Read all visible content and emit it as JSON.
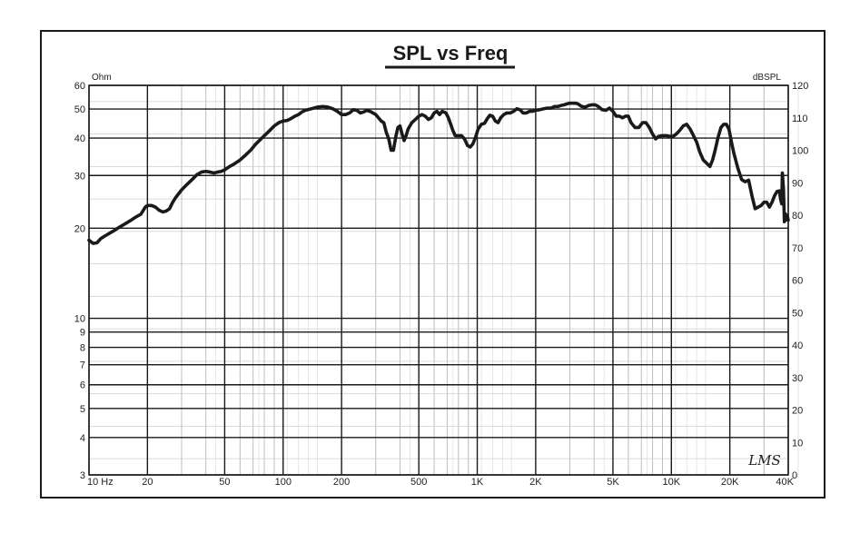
{
  "chart_data": {
    "type": "line",
    "title": "SPL vs Freq",
    "x_scale": "log",
    "xlim": [
      10,
      40000
    ],
    "left_axis": {
      "unit": "Ohm",
      "scale": "log",
      "lim": [
        3,
        60
      ],
      "ticks": [
        {
          "v": 60,
          "label": "60"
        },
        {
          "v": 50,
          "label": "50"
        },
        {
          "v": 40,
          "label": "40"
        },
        {
          "v": 30,
          "label": "30"
        },
        {
          "v": 20,
          "label": "20"
        },
        {
          "v": 10,
          "label": "10"
        },
        {
          "v": 9,
          "label": "9"
        },
        {
          "v": 8,
          "label": "8"
        },
        {
          "v": 7,
          "label": "7"
        },
        {
          "v": 6,
          "label": "6"
        },
        {
          "v": 5,
          "label": "5"
        },
        {
          "v": 4,
          "label": "4"
        },
        {
          "v": 3,
          "label": "3"
        }
      ]
    },
    "right_axis": {
      "unit": "dBSPL",
      "scale": "linear",
      "lim": [
        0,
        120
      ],
      "ticks": [
        {
          "v": 120,
          "label": "120"
        },
        {
          "v": 110,
          "label": "110"
        },
        {
          "v": 100,
          "label": "100"
        },
        {
          "v": 90,
          "label": "90"
        },
        {
          "v": 80,
          "label": "80"
        },
        {
          "v": 70,
          "label": "70"
        },
        {
          "v": 60,
          "label": "60"
        },
        {
          "v": 50,
          "label": "50"
        },
        {
          "v": 40,
          "label": "40"
        },
        {
          "v": 30,
          "label": "30"
        },
        {
          "v": 20,
          "label": "20"
        },
        {
          "v": 10,
          "label": "10"
        },
        {
          "v": 0,
          "label": "0"
        }
      ]
    },
    "x_ticks": [
      {
        "v": 10,
        "label": "10 Hz"
      },
      {
        "v": 20,
        "label": "20"
      },
      {
        "v": 50,
        "label": "50"
      },
      {
        "v": 100,
        "label": "100"
      },
      {
        "v": 200,
        "label": "200"
      },
      {
        "v": 500,
        "label": "500"
      },
      {
        "v": 1000,
        "label": "1K"
      },
      {
        "v": 2000,
        "label": "2K"
      },
      {
        "v": 5000,
        "label": "5K"
      },
      {
        "v": 10000,
        "label": "10K"
      },
      {
        "v": 20000,
        "label": "20K"
      },
      {
        "v": 40000,
        "label": "40K"
      }
    ],
    "grid": true,
    "series": [
      {
        "axis": "right",
        "points": [
          [
            10,
            72.3
          ],
          [
            10.5,
            71.3
          ],
          [
            11,
            71.5
          ],
          [
            11.5,
            72.8
          ],
          [
            12,
            73.5
          ],
          [
            12.8,
            74.5
          ],
          [
            13.5,
            75.3
          ],
          [
            14.5,
            76.5
          ],
          [
            15.5,
            77.5
          ],
          [
            16.5,
            78.5
          ],
          [
            17.5,
            79.5
          ],
          [
            18.5,
            80.3
          ],
          [
            19.5,
            82.5
          ],
          [
            20,
            83
          ],
          [
            21,
            83
          ],
          [
            22,
            82.5
          ],
          [
            23,
            81.5
          ],
          [
            24,
            81
          ],
          [
            25,
            81.3
          ],
          [
            26,
            82
          ],
          [
            27,
            84
          ],
          [
            28,
            85.5
          ],
          [
            30,
            87.8
          ],
          [
            32,
            89.5
          ],
          [
            34,
            91
          ],
          [
            36,
            92.5
          ],
          [
            38,
            93.3
          ],
          [
            40,
            93.5
          ],
          [
            42,
            93.3
          ],
          [
            44,
            93
          ],
          [
            46,
            93.3
          ],
          [
            48,
            93.5
          ],
          [
            50,
            94
          ],
          [
            53,
            95
          ],
          [
            56,
            95.8
          ],
          [
            60,
            97
          ],
          [
            64,
            98.5
          ],
          [
            68,
            100
          ],
          [
            72,
            101.8
          ],
          [
            76,
            103.2
          ],
          [
            80,
            104.5
          ],
          [
            85,
            106
          ],
          [
            90,
            107.5
          ],
          [
            95,
            108.5
          ],
          [
            100,
            109
          ],
          [
            105,
            109.2
          ],
          [
            110,
            109.8
          ],
          [
            115,
            110.5
          ],
          [
            120,
            111
          ],
          [
            125,
            111.8
          ],
          [
            130,
            112.3
          ],
          [
            140,
            112.8
          ],
          [
            150,
            113.3
          ],
          [
            160,
            113.5
          ],
          [
            170,
            113.3
          ],
          [
            180,
            112.8
          ],
          [
            190,
            112
          ],
          [
            200,
            111
          ],
          [
            210,
            111
          ],
          [
            220,
            111.5
          ],
          [
            230,
            112.5
          ],
          [
            240,
            112.3
          ],
          [
            250,
            111.5
          ],
          [
            260,
            111.8
          ],
          [
            270,
            112.3
          ],
          [
            280,
            112
          ],
          [
            290,
            111.5
          ],
          [
            300,
            111
          ],
          [
            310,
            110
          ],
          [
            320,
            109
          ],
          [
            330,
            108.5
          ],
          [
            340,
            105.5
          ],
          [
            350,
            103.5
          ],
          [
            360,
            100
          ],
          [
            370,
            100
          ],
          [
            380,
            104
          ],
          [
            390,
            107
          ],
          [
            400,
            107.5
          ],
          [
            410,
            105
          ],
          [
            420,
            103
          ],
          [
            430,
            104.5
          ],
          [
            440,
            106.5
          ],
          [
            460,
            108.5
          ],
          [
            480,
            109.5
          ],
          [
            500,
            110.5
          ],
          [
            520,
            111
          ],
          [
            540,
            110.5
          ],
          [
            560,
            109.5
          ],
          [
            580,
            110
          ],
          [
            600,
            111.5
          ],
          [
            620,
            112
          ],
          [
            640,
            111
          ],
          [
            660,
            112
          ],
          [
            690,
            111.5
          ],
          [
            710,
            110
          ],
          [
            730,
            108
          ],
          [
            750,
            106
          ],
          [
            770,
            104.5
          ],
          [
            800,
            104.5
          ],
          [
            830,
            104.5
          ],
          [
            860,
            103.5
          ],
          [
            890,
            101.5
          ],
          [
            920,
            101
          ],
          [
            950,
            102
          ],
          [
            980,
            104
          ],
          [
            1010,
            106.5
          ],
          [
            1050,
            108
          ],
          [
            1090,
            108.3
          ],
          [
            1120,
            109.5
          ],
          [
            1160,
            110.8
          ],
          [
            1200,
            110.5
          ],
          [
            1240,
            109
          ],
          [
            1280,
            108.5
          ],
          [
            1320,
            110
          ],
          [
            1370,
            111
          ],
          [
            1420,
            111.5
          ],
          [
            1480,
            111.5
          ],
          [
            1540,
            112
          ],
          [
            1600,
            112.8
          ],
          [
            1660,
            112.5
          ],
          [
            1720,
            111.5
          ],
          [
            1790,
            111.5
          ],
          [
            1860,
            112
          ],
          [
            1930,
            112
          ],
          [
            2000,
            112.3
          ],
          [
            2100,
            112.5
          ],
          [
            2200,
            112.8
          ],
          [
            2300,
            113
          ],
          [
            2400,
            113
          ],
          [
            2500,
            113.5
          ],
          [
            2600,
            113.5
          ],
          [
            2700,
            113.8
          ],
          [
            2800,
            114
          ],
          [
            2900,
            114.3
          ],
          [
            3000,
            114.5
          ],
          [
            3100,
            114.5
          ],
          [
            3200,
            114.5
          ],
          [
            3300,
            114.3
          ],
          [
            3450,
            113.5
          ],
          [
            3600,
            113.3
          ],
          [
            3750,
            113.8
          ],
          [
            3900,
            114
          ],
          [
            4050,
            114
          ],
          [
            4200,
            113.5
          ],
          [
            4400,
            112.5
          ],
          [
            4600,
            112.3
          ],
          [
            4800,
            113
          ],
          [
            5000,
            112
          ],
          [
            5200,
            110.5
          ],
          [
            5400,
            110.5
          ],
          [
            5600,
            110
          ],
          [
            5800,
            110.5
          ],
          [
            6000,
            110.5
          ],
          [
            6200,
            108.5
          ],
          [
            6500,
            107
          ],
          [
            6800,
            107
          ],
          [
            7100,
            108.5
          ],
          [
            7400,
            108.5
          ],
          [
            7700,
            107
          ],
          [
            8000,
            105
          ],
          [
            8300,
            103.5
          ],
          [
            8600,
            104.3
          ],
          [
            9000,
            104.5
          ],
          [
            9400,
            104.5
          ],
          [
            9800,
            104.3
          ],
          [
            10200,
            104.3
          ],
          [
            10600,
            105
          ],
          [
            11000,
            106
          ],
          [
            11500,
            107.5
          ],
          [
            12000,
            108
          ],
          [
            12500,
            106.5
          ],
          [
            13000,
            104.5
          ],
          [
            13500,
            102.5
          ],
          [
            14000,
            99.5
          ],
          [
            14600,
            97
          ],
          [
            15200,
            96
          ],
          [
            15800,
            95
          ],
          [
            16300,
            97
          ],
          [
            16800,
            100
          ],
          [
            17400,
            104
          ],
          [
            18000,
            107
          ],
          [
            18600,
            108
          ],
          [
            19200,
            108
          ],
          [
            19800,
            106.5
          ],
          [
            20400,
            102.5
          ],
          [
            21000,
            99
          ],
          [
            22000,
            94.5
          ],
          [
            23000,
            91
          ],
          [
            24000,
            90.3
          ],
          [
            25000,
            90.8
          ],
          [
            26000,
            86
          ],
          [
            27000,
            82
          ],
          [
            28000,
            82.5
          ],
          [
            29000,
            83
          ],
          [
            30000,
            84
          ],
          [
            31000,
            84
          ],
          [
            32000,
            82.5
          ],
          [
            33000,
            84
          ],
          [
            34000,
            86
          ],
          [
            35000,
            87.3
          ],
          [
            36000,
            87.5
          ],
          [
            36500,
            85
          ],
          [
            37000,
            83.5
          ],
          [
            37300,
            93
          ],
          [
            37800,
            88
          ],
          [
            38200,
            78
          ],
          [
            38600,
            80.5
          ],
          [
            39100,
            78.5
          ],
          [
            39500,
            80
          ],
          [
            40000,
            78.5
          ]
        ]
      }
    ],
    "signature": "LMS"
  }
}
